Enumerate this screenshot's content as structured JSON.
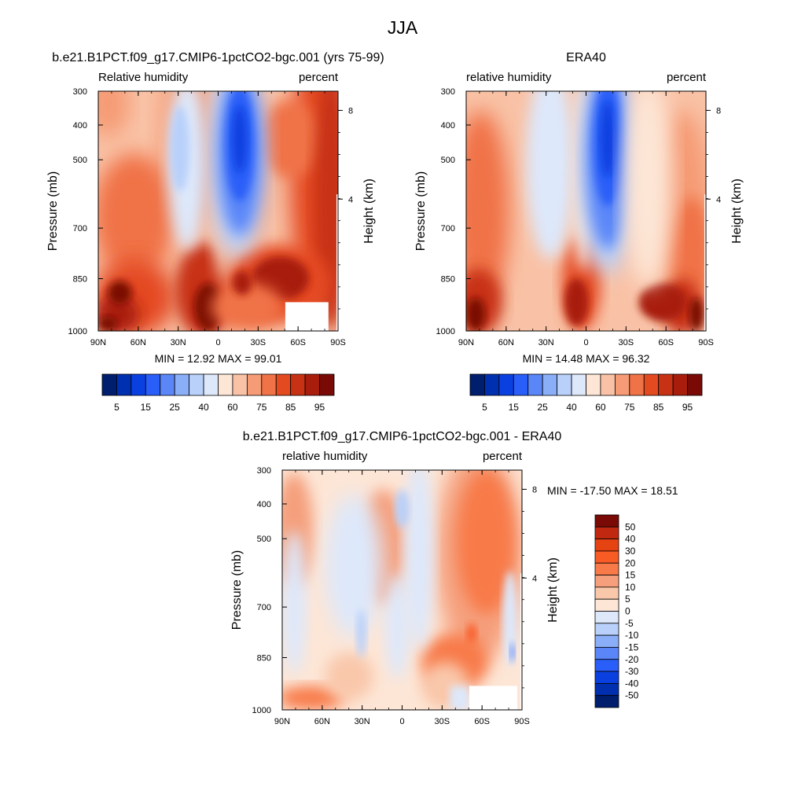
{
  "figure_title": "JJA",
  "chart_data": [
    {
      "type": "heatmap",
      "title": "b.e21.B1PCT.f09_g17.CMIP6-1pctCO2-bgc.001 (yrs 75-99)",
      "left_label": "Relative humidity",
      "right_label": "percent",
      "ylabel": "Pressure (mb)",
      "ylabel_right": "Height (km)",
      "x_ticks": [
        "90N",
        "60N",
        "30N",
        "0",
        "30S",
        "60S",
        "90S"
      ],
      "y_ticks": [
        "300",
        "400",
        "500",
        "700",
        "850",
        "1000"
      ],
      "y_right_ticks": [
        "8",
        "4"
      ],
      "ylim": [
        1000,
        300
      ],
      "xlim": [
        90,
        -90
      ],
      "stats": "MIN =  12.92  MAX =  99.01",
      "min": 12.92,
      "max": 99.01,
      "colorbar": {
        "orientation": "horizontal",
        "labels": [
          "5",
          "15",
          "25",
          "40",
          "60",
          "75",
          "85",
          "95"
        ],
        "colors": [
          "#001e6e",
          "#0030b0",
          "#0a40e0",
          "#2a5ef8",
          "#5a86f8",
          "#8aaef8",
          "#b8d0fa",
          "#dde8fb",
          "#fde6d6",
          "#f9c2a6",
          "#f59b75",
          "#f07247",
          "#e44a20",
          "#c83214",
          "#a81d0c",
          "#7a0a05"
        ]
      }
    },
    {
      "type": "heatmap",
      "title": "ERA40",
      "left_label": "relative humidity",
      "right_label": "percent",
      "ylabel": "Pressure (mb)",
      "ylabel_right": "Height (km)",
      "x_ticks": [
        "90N",
        "60N",
        "30N",
        "0",
        "30S",
        "60S",
        "90S"
      ],
      "y_ticks": [
        "300",
        "400",
        "500",
        "700",
        "850",
        "1000"
      ],
      "y_right_ticks": [
        "8",
        "4"
      ],
      "ylim": [
        1000,
        300
      ],
      "xlim": [
        90,
        -90
      ],
      "stats": "MIN =  14.48  MAX =  96.32",
      "min": 14.48,
      "max": 96.32,
      "colorbar": {
        "orientation": "horizontal",
        "labels": [
          "5",
          "15",
          "25",
          "40",
          "60",
          "75",
          "85",
          "95"
        ],
        "colors": [
          "#001e6e",
          "#0030b0",
          "#0a40e0",
          "#2a5ef8",
          "#5a86f8",
          "#8aaef8",
          "#b8d0fa",
          "#dde8fb",
          "#fde6d6",
          "#f9c2a6",
          "#f59b75",
          "#f07247",
          "#e44a20",
          "#c83214",
          "#a81d0c",
          "#7a0a05"
        ]
      }
    },
    {
      "type": "heatmap",
      "title": "b.e21.B1PCT.f09_g17.CMIP6-1pctCO2-bgc.001 - ERA40",
      "left_label": "relative humidity",
      "right_label": "percent",
      "ylabel": "Pressure (mb)",
      "ylabel_right": "Height (km)",
      "x_ticks": [
        "90N",
        "60N",
        "30N",
        "0",
        "30S",
        "60S",
        "90S"
      ],
      "y_ticks": [
        "300",
        "400",
        "500",
        "700",
        "850",
        "1000"
      ],
      "y_right_ticks": [
        "8",
        "4"
      ],
      "ylim": [
        1000,
        300
      ],
      "xlim": [
        90,
        -90
      ],
      "stats": "MIN = -17.50  MAX =  18.51",
      "min": -17.5,
      "max": 18.51,
      "colorbar": {
        "orientation": "vertical",
        "labels": [
          "50",
          "40",
          "30",
          "20",
          "15",
          "10",
          "5",
          "0",
          "-5",
          "-10",
          "-15",
          "-20",
          "-30",
          "-40",
          "-50"
        ],
        "colors": [
          "#7a0a05",
          "#c0290f",
          "#e64312",
          "#f95b25",
          "#f87a48",
          "#f59f7c",
          "#f9c7aa",
          "#fde6d6",
          "#dde8fb",
          "#b8d0fa",
          "#8aaef8",
          "#5a86f8",
          "#2a5ef8",
          "#0a40e0",
          "#0030b0",
          "#001e6e"
        ]
      }
    }
  ]
}
